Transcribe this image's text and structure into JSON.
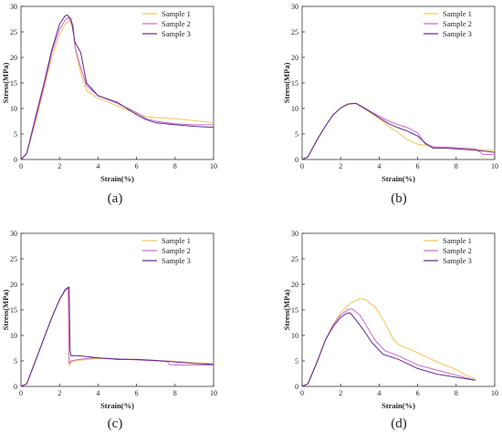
{
  "figure": {
    "colors": {
      "sample1": "#f2c45a",
      "sample2": "#cc66cc",
      "sample3": "#5b2a86"
    }
  },
  "chart_data": [
    {
      "type": "line",
      "panel_label": "(a)",
      "xlabel": "Strain(%)",
      "ylabel": "Stress(MPa)",
      "xlim": [
        0,
        10
      ],
      "ylim": [
        0,
        30
      ],
      "xticks": [
        0,
        2,
        4,
        6,
        8,
        10
      ],
      "yticks": [
        0,
        5,
        10,
        15,
        20,
        25,
        30
      ],
      "legend_position": "top-right",
      "series": [
        {
          "name": "Sample 1",
          "color": "#f2c45a",
          "x": [
            0,
            0.3,
            0.8,
            1.2,
            1.6,
            2.0,
            2.3,
            2.5,
            2.7,
            2.85,
            3.1,
            3.4,
            4.0,
            5.0,
            6.0,
            6.5,
            7.0,
            8.0,
            9.0,
            10.0
          ],
          "y": [
            0,
            1.2,
            8,
            14,
            20,
            24.5,
            26.5,
            27.2,
            26,
            21,
            17,
            13.5,
            12,
            10.5,
            9,
            8.4,
            8.2,
            8,
            7.6,
            7.2
          ]
        },
        {
          "name": "Sample 2",
          "color": "#cc66cc",
          "x": [
            0,
            0.3,
            0.8,
            1.2,
            1.6,
            2.0,
            2.3,
            2.45,
            2.7,
            2.8,
            3.1,
            3.4,
            4.0,
            5.0,
            6.0,
            6.5,
            7.0,
            8.0,
            9.0,
            10.0
          ],
          "y": [
            0,
            1.2,
            8.5,
            14.5,
            21,
            25.5,
            27.3,
            27.8,
            26.5,
            22,
            18,
            14.5,
            12.5,
            11,
            9.2,
            8,
            7.5,
            7,
            6.8,
            6.8
          ]
        },
        {
          "name": "Sample 3",
          "color": "#5b2a86",
          "x": [
            0,
            0.3,
            0.8,
            1.2,
            1.6,
            2.0,
            2.3,
            2.4,
            2.6,
            2.8,
            3.1,
            3.4,
            4.0,
            5.0,
            6.0,
            6.5,
            7.0,
            8.0,
            9.0,
            10.0
          ],
          "y": [
            0,
            1.2,
            9,
            15,
            21.5,
            26.5,
            28.2,
            28.3,
            27.5,
            23,
            21,
            15,
            12.5,
            11.2,
            8.8,
            7.8,
            7.2,
            6.8,
            6.5,
            6.3
          ]
        }
      ]
    },
    {
      "type": "line",
      "panel_label": "(b)",
      "xlabel": "Strain(%)",
      "ylabel": "Stress(MPa)",
      "xlim": [
        0,
        10
      ],
      "ylim": [
        0,
        30
      ],
      "xticks": [
        0,
        2,
        4,
        6,
        8,
        10
      ],
      "yticks": [
        0,
        5,
        10,
        15,
        20,
        25,
        30
      ],
      "legend_position": "top-right",
      "series": [
        {
          "name": "Sample 1",
          "color": "#f2c45a",
          "x": [
            0,
            0.3,
            0.8,
            1.2,
            1.6,
            2.0,
            2.4,
            2.8,
            3.2,
            3.6,
            4.0,
            4.5,
            5.0,
            5.5,
            6.0,
            6.4,
            6.8,
            7.5,
            8.0,
            9.0,
            10.0
          ],
          "y": [
            0,
            0.5,
            4,
            6.5,
            8.7,
            10.1,
            10.8,
            11,
            10,
            9,
            8,
            6.5,
            5.2,
            3.8,
            3,
            2.8,
            2.4,
            2.2,
            2,
            2,
            1.8
          ]
        },
        {
          "name": "Sample 2",
          "color": "#cc66cc",
          "x": [
            0,
            0.3,
            0.8,
            1.2,
            1.6,
            2.0,
            2.4,
            2.8,
            3.2,
            3.6,
            4.0,
            4.5,
            5.0,
            5.5,
            6.0,
            6.4,
            6.8,
            7.5,
            8.0,
            9.0,
            9.4,
            10.0
          ],
          "y": [
            0,
            0.5,
            4,
            6.5,
            8.7,
            10.1,
            10.9,
            11,
            10.2,
            9.3,
            8.5,
            7.5,
            6.8,
            6.2,
            5.2,
            3,
            2.5,
            2.4,
            2.3,
            2.1,
            1,
            1
          ]
        },
        {
          "name": "Sample 3",
          "color": "#5b2a86",
          "x": [
            0,
            0.3,
            0.8,
            1.2,
            1.6,
            2.0,
            2.4,
            2.8,
            3.2,
            3.6,
            4.0,
            4.5,
            5.0,
            5.5,
            6.0,
            6.4,
            6.8,
            7.5,
            8.0,
            9.0,
            10.0
          ],
          "y": [
            0,
            0.5,
            4,
            6.5,
            8.7,
            10.1,
            10.9,
            11,
            10.1,
            9.2,
            8.2,
            7,
            6.2,
            5.5,
            4.6,
            3.2,
            2.2,
            2.2,
            2.1,
            1.8,
            1.4
          ]
        }
      ]
    },
    {
      "type": "line",
      "panel_label": "(c)",
      "xlabel": "Strain(%)",
      "ylabel": "Stress(MPa)",
      "xlim": [
        0,
        10
      ],
      "ylim": [
        0,
        30
      ],
      "xticks": [
        0,
        2,
        4,
        6,
        8,
        10
      ],
      "yticks": [
        0,
        5,
        10,
        15,
        20,
        25,
        30
      ],
      "legend_position": "top-right",
      "series": [
        {
          "name": "Sample 1",
          "color": "#f2c45a",
          "x": [
            0,
            0.3,
            0.8,
            1.2,
            1.6,
            2.0,
            2.3,
            2.45,
            2.5,
            2.6,
            3.0,
            3.5,
            4.0,
            5.0,
            6.0,
            7.0,
            7.5,
            8.0,
            9.0,
            10.0
          ],
          "y": [
            0,
            0.5,
            5.5,
            9.5,
            13.5,
            17,
            18.8,
            19.2,
            4,
            4.8,
            5.1,
            5.3,
            5.5,
            5.4,
            5.3,
            5.1,
            5,
            4.9,
            4.6,
            4.5
          ]
        },
        {
          "name": "Sample 2",
          "color": "#cc66cc",
          "x": [
            0,
            0.3,
            0.8,
            1.2,
            1.6,
            2.0,
            2.3,
            2.45,
            2.5,
            2.6,
            3.0,
            3.5,
            4.0,
            5.0,
            6.0,
            7.0,
            7.6,
            7.7,
            8.0,
            9.0,
            10.0
          ],
          "y": [
            0,
            0.5,
            5.5,
            9.5,
            13.5,
            17,
            18.8,
            19.3,
            4.5,
            5,
            5.3,
            5.5,
            5.6,
            5.4,
            5.2,
            5,
            4.9,
            4.3,
            4.2,
            4.2,
            4.2
          ]
        },
        {
          "name": "Sample 3",
          "color": "#5b2a86",
          "x": [
            0,
            0.3,
            0.8,
            1.2,
            1.6,
            2.0,
            2.3,
            2.5,
            2.55,
            2.6,
            3.0,
            3.5,
            4.0,
            5.0,
            6.0,
            7.0,
            8.0,
            9.0,
            10.0
          ],
          "y": [
            0,
            0.5,
            5.5,
            9.5,
            13.5,
            17,
            19,
            19.5,
            7,
            6,
            6,
            5.8,
            5.6,
            5.3,
            5.3,
            5.1,
            4.8,
            4.5,
            4.3
          ]
        }
      ]
    },
    {
      "type": "line",
      "panel_label": "(d)",
      "xlabel": "Strain(%)",
      "ylabel": "Stress(MPa)",
      "xlim": [
        0,
        10
      ],
      "ylim": [
        0,
        30
      ],
      "xticks": [
        0,
        2,
        4,
        6,
        8,
        10
      ],
      "yticks": [
        0,
        5,
        10,
        15,
        20,
        25,
        30
      ],
      "legend_position": "top-right",
      "series": [
        {
          "name": "Sample 1",
          "color": "#f2c45a",
          "x": [
            0,
            0.3,
            0.8,
            1.2,
            1.6,
            2.0,
            2.5,
            3.0,
            3.3,
            3.8,
            4.3,
            4.7,
            5.0,
            6.0,
            7.0,
            8.0,
            8.5,
            9.0
          ],
          "y": [
            0,
            0.5,
            5,
            9,
            12,
            14.5,
            16.3,
            17.2,
            17,
            15.5,
            12.5,
            9.5,
            8.2,
            6.6,
            4.8,
            3.3,
            2.2,
            1.5
          ]
        },
        {
          "name": "Sample 2",
          "color": "#cc66cc",
          "x": [
            0,
            0.3,
            0.8,
            1.2,
            1.6,
            2.0,
            2.4,
            2.6,
            3.0,
            3.4,
            3.8,
            4.3,
            5.0,
            6.0,
            7.0,
            8.0,
            9.0
          ],
          "y": [
            0,
            0.5,
            5,
            9,
            12,
            14,
            15.1,
            15.2,
            14,
            11.5,
            9,
            7,
            6,
            4.2,
            3.2,
            2.2,
            1.2
          ]
        },
        {
          "name": "Sample 3",
          "color": "#5b2a86",
          "x": [
            0,
            0.3,
            0.8,
            1.2,
            1.6,
            2.0,
            2.3,
            2.5,
            2.8,
            3.2,
            3.6,
            4.2,
            5.0,
            6.0,
            7.0,
            8.0,
            9.0
          ],
          "y": [
            0,
            0.5,
            5,
            9,
            11.7,
            13.5,
            14.3,
            14.4,
            13,
            11,
            8.7,
            6.3,
            5.3,
            3.5,
            2.4,
            1.8,
            1.2
          ]
        }
      ]
    }
  ]
}
